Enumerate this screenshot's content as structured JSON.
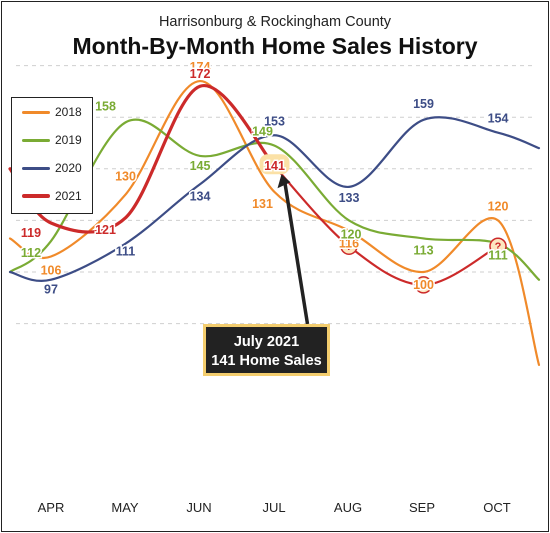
{
  "chart_data": {
    "type": "line",
    "subtitle": "Harrisonburg & Rockingham County",
    "title": "Month-By-Month Home Sales History",
    "categories": [
      "APR",
      "MAY",
      "JUN",
      "JUL",
      "AUG",
      "SEP",
      "OCT"
    ],
    "series": [
      {
        "name": "2018",
        "color": "#f08a2a",
        "values": [
          106,
          130,
          174,
          131,
          116,
          100,
          120
        ]
      },
      {
        "name": "2019",
        "color": "#7aab34",
        "values": [
          112,
          158,
          145,
          149,
          120,
          113,
          111
        ]
      },
      {
        "name": "2020",
        "color": "#3d4d86",
        "values": [
          97,
          111,
          134,
          153,
          133,
          159,
          154
        ]
      },
      {
        "name": "2021",
        "color": "#cc2a2a",
        "values": [
          119,
          121,
          172,
          141,
          "?",
          "?",
          "?"
        ]
      }
    ],
    "legend_position": "top-left",
    "grid": "dashed horizontal",
    "callout": {
      "line1": "July 2021",
      "line2": "141 Home Sales"
    }
  }
}
